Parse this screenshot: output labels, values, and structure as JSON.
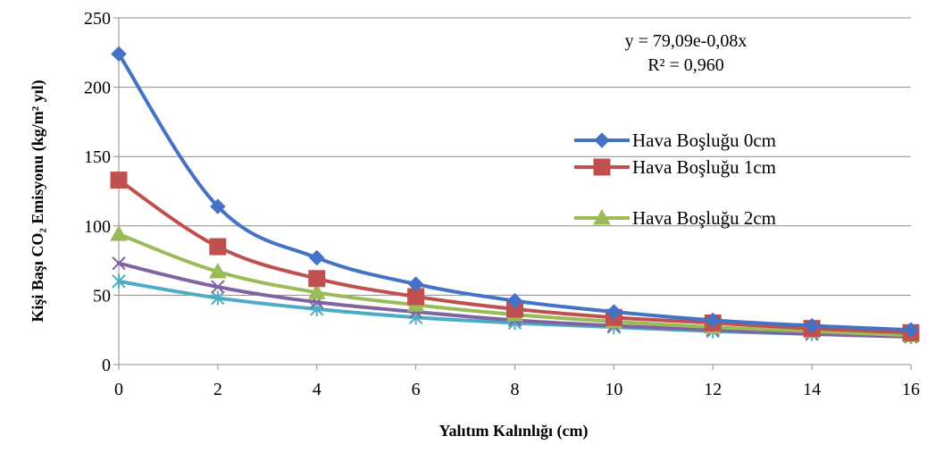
{
  "chart_data": {
    "type": "line",
    "xlabel": "Yalıtım Kalınlığı (cm)",
    "ylabel": "Kişi Başı CO₂ Emisyonu (kg/m² yıl)",
    "x": [
      0,
      2,
      4,
      6,
      8,
      10,
      12,
      14,
      16
    ],
    "xlim": [
      0,
      16
    ],
    "ylim": [
      0,
      250
    ],
    "xticks": [
      "0",
      "2",
      "4",
      "6",
      "8",
      "10",
      "12",
      "14",
      "16"
    ],
    "yticks": [
      "0",
      "50",
      "100",
      "150",
      "200",
      "250"
    ],
    "grid": "horizontal",
    "annotation": {
      "equation": "y = 79,09e-0,08x",
      "r2": "R² = 0,960"
    },
    "legend_position": "right",
    "series": [
      {
        "name": "Hava Boşluğu 0cm",
        "color": "#4472C4",
        "marker": "diamond",
        "values": [
          224,
          114,
          77,
          58,
          46,
          38,
          32,
          28,
          25
        ]
      },
      {
        "name": "Hava Boşluğu 1cm",
        "color": "#C0504D",
        "marker": "square",
        "values": [
          133,
          85,
          62,
          49,
          40,
          34,
          30,
          26,
          23
        ]
      },
      {
        "name": "Hava Boşluğu 2cm",
        "color": "#9BBB59",
        "marker": "triangle",
        "values": [
          94,
          67,
          52,
          43,
          36,
          31,
          27,
          24,
          21
        ]
      },
      {
        "color": "#8064A2",
        "marker": "x",
        "values": [
          73,
          56,
          45,
          38,
          32,
          28,
          25,
          22,
          20
        ]
      },
      {
        "color": "#4BACC6",
        "marker": "asterisk",
        "values": [
          60,
          48,
          40,
          34,
          30,
          27,
          24,
          22,
          20
        ]
      }
    ]
  }
}
